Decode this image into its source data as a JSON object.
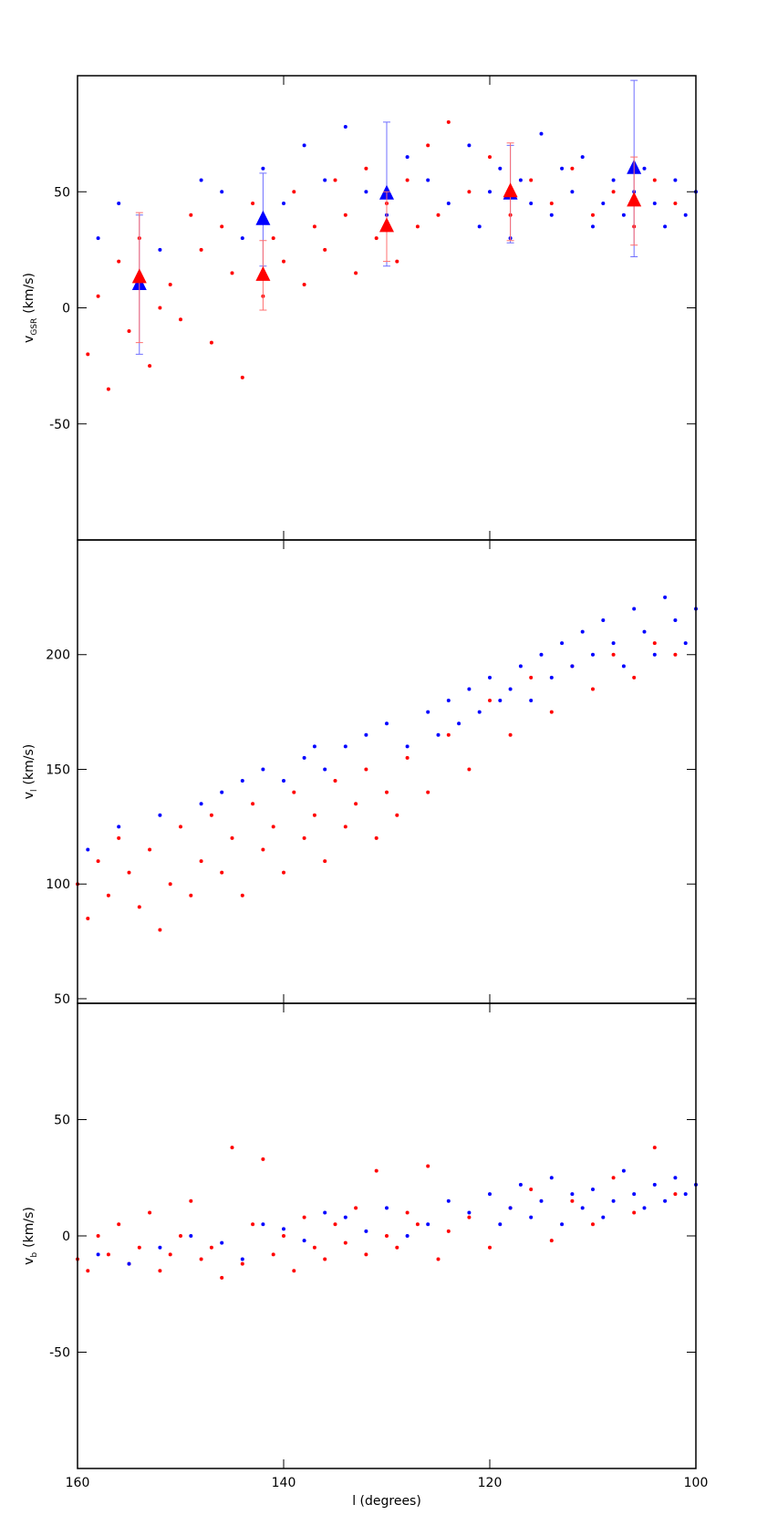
{
  "chart_data": [
    {
      "type": "scatter",
      "ylabel": {
        "main": "v",
        "sub": "GSR",
        "unit": "(km/s)"
      },
      "xlim": [
        160,
        100
      ],
      "xticks": [
        160,
        140,
        120,
        100
      ],
      "show_xticklabels": false,
      "ylim": [
        -100,
        100
      ],
      "yticks": [
        -50,
        0,
        50
      ],
      "series": [
        {
          "color": "#ff0000",
          "marker": "dot",
          "x": [
            159,
            158,
            157,
            156,
            155,
            154,
            153,
            152,
            151,
            150,
            149,
            148,
            147,
            146,
            145,
            144,
            143,
            142,
            141,
            140,
            139,
            138,
            137,
            136,
            135,
            134,
            133,
            132,
            131,
            130,
            129,
            128,
            127,
            126,
            125,
            124,
            122,
            120,
            118,
            116,
            114,
            112,
            110,
            108,
            106,
            104,
            102
          ],
          "values": [
            -20,
            5,
            -35,
            20,
            -10,
            30,
            -25,
            0,
            10,
            -5,
            40,
            25,
            -15,
            35,
            15,
            -30,
            45,
            5,
            30,
            20,
            50,
            10,
            35,
            25,
            55,
            40,
            15,
            60,
            30,
            45,
            20,
            55,
            35,
            70,
            40,
            80,
            50,
            65,
            40,
            55,
            45,
            60,
            40,
            50,
            35,
            55,
            45
          ]
        },
        {
          "color": "#0000ff",
          "marker": "dot",
          "x": [
            158,
            156,
            154,
            152,
            148,
            146,
            144,
            142,
            140,
            138,
            136,
            134,
            132,
            130,
            128,
            126,
            124,
            122,
            121,
            120,
            119,
            118,
            117,
            116,
            115,
            114,
            113,
            112,
            111,
            110,
            109,
            108,
            107,
            106,
            105,
            104,
            103,
            102,
            101,
            100
          ],
          "values": [
            30,
            45,
            15,
            25,
            55,
            50,
            30,
            60,
            45,
            70,
            55,
            78,
            50,
            40,
            65,
            55,
            45,
            70,
            35,
            50,
            60,
            30,
            55,
            45,
            75,
            40,
            60,
            50,
            65,
            35,
            45,
            55,
            40,
            50,
            60,
            45,
            35,
            55,
            40,
            50
          ]
        },
        {
          "color": "#0000ff",
          "errcolor": "#6f6fff",
          "marker": "triangle",
          "x": [
            154,
            142,
            130,
            118,
            106
          ],
          "values": [
            10,
            38,
            49,
            49,
            60
          ],
          "errors": [
            30,
            20,
            31,
            21,
            38
          ]
        },
        {
          "color": "#ff0000",
          "errcolor": "#ff6f6f",
          "marker": "triangle",
          "x": [
            154,
            142,
            130,
            118,
            106
          ],
          "values": [
            13,
            14,
            35,
            50,
            46
          ],
          "errors": [
            28,
            15,
            15,
            21,
            19
          ]
        }
      ]
    },
    {
      "type": "scatter",
      "ylabel": {
        "main": "v",
        "sub": "l",
        "unit": "(km/s)"
      },
      "xlim": [
        160,
        100
      ],
      "xticks": [
        160,
        140,
        120,
        100
      ],
      "show_xticklabels": false,
      "ylim": [
        48,
        250
      ],
      "yticks": [
        50,
        100,
        150,
        200
      ],
      "series": [
        {
          "color": "#ff0000",
          "marker": "dot",
          "x": [
            160,
            159,
            158,
            157,
            156,
            155,
            154,
            153,
            152,
            151,
            150,
            149,
            148,
            147,
            146,
            145,
            144,
            143,
            142,
            141,
            140,
            139,
            138,
            137,
            136,
            135,
            134,
            133,
            132,
            131,
            130,
            129,
            128,
            126,
            124,
            122,
            120,
            118,
            116,
            114,
            112,
            110,
            108,
            106,
            104,
            102
          ],
          "values": [
            100,
            85,
            110,
            95,
            120,
            105,
            90,
            115,
            80,
            100,
            125,
            95,
            110,
            130,
            105,
            120,
            95,
            135,
            115,
            125,
            105,
            140,
            120,
            130,
            110,
            145,
            125,
            135,
            150,
            120,
            140,
            130,
            155,
            140,
            165,
            150,
            180,
            165,
            190,
            175,
            195,
            185,
            200,
            190,
            205,
            200
          ]
        },
        {
          "color": "#0000ff",
          "marker": "dot",
          "x": [
            159,
            156,
            152,
            148,
            146,
            144,
            142,
            140,
            138,
            137,
            136,
            134,
            132,
            130,
            128,
            126,
            125,
            124,
            123,
            122,
            121,
            120,
            119,
            118,
            117,
            116,
            115,
            114,
            113,
            112,
            111,
            110,
            109,
            108,
            107,
            106,
            105,
            104,
            103,
            102,
            101,
            100
          ],
          "values": [
            115,
            125,
            130,
            135,
            140,
            145,
            150,
            145,
            155,
            160,
            150,
            160,
            165,
            170,
            160,
            175,
            165,
            180,
            170,
            185,
            175,
            190,
            180,
            185,
            195,
            180,
            200,
            190,
            205,
            195,
            210,
            200,
            215,
            205,
            195,
            220,
            210,
            200,
            225,
            215,
            205,
            220
          ]
        }
      ]
    },
    {
      "type": "scatter",
      "ylabel": {
        "main": "v",
        "sub": "b",
        "unit": "(km/s)"
      },
      "xlabel": "l (degrees)",
      "xlim": [
        160,
        100
      ],
      "xticks": [
        160,
        140,
        120,
        100
      ],
      "show_xticklabels": true,
      "ylim": [
        -100,
        100
      ],
      "yticks": [
        -50,
        0,
        50
      ],
      "series": [
        {
          "color": "#ff0000",
          "marker": "dot",
          "x": [
            160,
            159,
            158,
            157,
            156,
            155,
            154,
            153,
            152,
            151,
            150,
            149,
            148,
            147,
            146,
            145,
            144,
            143,
            142,
            141,
            140,
            139,
            138,
            137,
            136,
            135,
            134,
            133,
            132,
            131,
            130,
            129,
            128,
            127,
            126,
            125,
            124,
            122,
            120,
            118,
            116,
            114,
            112,
            110,
            108,
            106,
            104,
            102
          ],
          "values": [
            -10,
            -15,
            0,
            -8,
            5,
            -12,
            -5,
            10,
            -15,
            -8,
            0,
            15,
            -10,
            -5,
            -18,
            38,
            -12,
            5,
            33,
            -8,
            0,
            -15,
            8,
            -5,
            -10,
            5,
            -3,
            12,
            -8,
            28,
            0,
            -5,
            10,
            5,
            30,
            -10,
            2,
            8,
            -5,
            12,
            20,
            -2,
            15,
            5,
            25,
            10,
            38,
            18
          ]
        },
        {
          "color": "#0000ff",
          "marker": "dot",
          "x": [
            158,
            155,
            152,
            149,
            146,
            144,
            142,
            140,
            138,
            136,
            134,
            132,
            130,
            128,
            126,
            124,
            122,
            120,
            119,
            118,
            117,
            116,
            115,
            114,
            113,
            112,
            111,
            110,
            109,
            108,
            107,
            106,
            105,
            104,
            103,
            102,
            101,
            100
          ],
          "values": [
            -8,
            -12,
            -5,
            0,
            -3,
            -10,
            5,
            3,
            -2,
            10,
            8,
            2,
            12,
            0,
            5,
            15,
            10,
            18,
            5,
            12,
            22,
            8,
            15,
            25,
            5,
            18,
            12,
            20,
            8,
            15,
            28,
            18,
            12,
            22,
            15,
            25,
            18,
            22
          ]
        }
      ]
    }
  ]
}
